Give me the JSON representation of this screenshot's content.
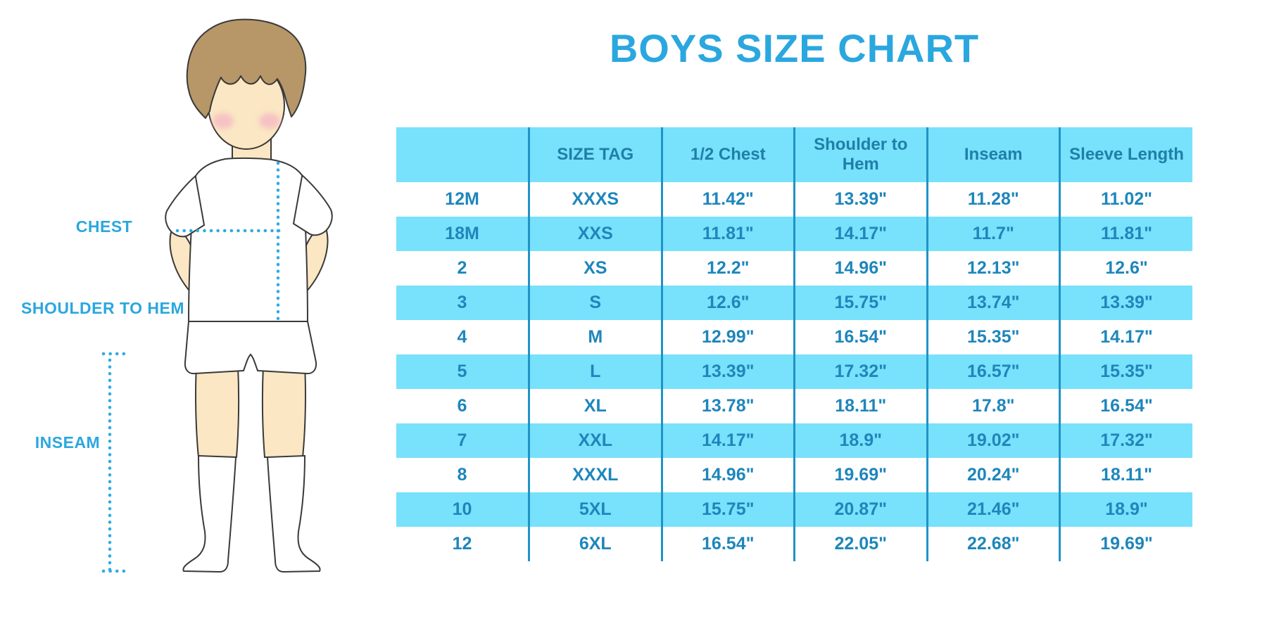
{
  "title": "BOYS SIZE CHART",
  "diagram": {
    "labels": {
      "chest": "CHEST",
      "shoulder_to_hem": "SHOULDER TO HEM",
      "inseam": "INSEAM"
    }
  },
  "chart_data": {
    "type": "table",
    "title": "BOYS SIZE CHART",
    "columns": [
      "",
      "SIZE TAG",
      "1/2 Chest",
      "Shoulder to Hem",
      "Inseam",
      "Sleeve Length"
    ],
    "rows": [
      [
        "12M",
        "XXXS",
        "11.42\"",
        "13.39\"",
        "11.28\"",
        "11.02\""
      ],
      [
        "18M",
        "XXS",
        "11.81\"",
        "14.17\"",
        "11.7\"",
        "11.81\""
      ],
      [
        "2",
        "XS",
        "12.2\"",
        "14.96\"",
        "12.13\"",
        "12.6\""
      ],
      [
        "3",
        "S",
        "12.6\"",
        "15.75\"",
        "13.74\"",
        "13.39\""
      ],
      [
        "4",
        "M",
        "12.99\"",
        "16.54\"",
        "15.35\"",
        "14.17\""
      ],
      [
        "5",
        "L",
        "13.39\"",
        "17.32\"",
        "16.57\"",
        "15.35\""
      ],
      [
        "6",
        "XL",
        "13.78\"",
        "18.11\"",
        "17.8\"",
        "16.54\""
      ],
      [
        "7",
        "XXL",
        "14.17\"",
        "18.9\"",
        "19.02\"",
        "17.32\""
      ],
      [
        "8",
        "XXXL",
        "14.96\"",
        "19.69\"",
        "20.24\"",
        "18.11\""
      ],
      [
        "10",
        "5XL",
        "15.75\"",
        "20.87\"",
        "21.46\"",
        "18.9\""
      ],
      [
        "12",
        "6XL",
        "16.54\"",
        "22.05\"",
        "22.68\"",
        "19.69\""
      ]
    ],
    "row_banding": "alternate rows light blue starting with second data row",
    "legend_position": "none",
    "grid": "vertical separators only"
  },
  "colors": {
    "accent_blue": "#2BA7DF",
    "band_blue": "#78E1FB",
    "header_text": "#1F7FA9",
    "cell_text": "#1E86BB",
    "separator": "#2093C6",
    "dotted_line": "#2FABE2",
    "skin": "#FBE7C3",
    "hair": "#B79668",
    "cheek": "#F5B8C4",
    "outline": "#3A3A3A"
  }
}
